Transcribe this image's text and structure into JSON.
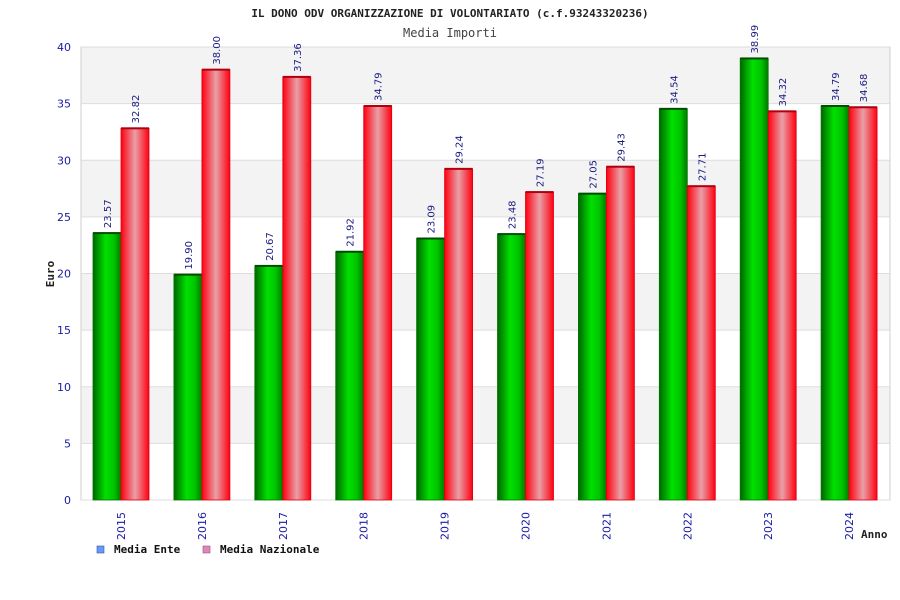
{
  "chart_data": {
    "type": "bar",
    "title": "IL DONO ODV ORGANIZZAZIONE DI VOLONTARIATO (c.f.93243320236)",
    "subtitle": "Media Importi",
    "xlabel": "Anno",
    "ylabel": "Euro",
    "ylim": [
      0,
      40
    ],
    "yticks": [
      "0",
      "5",
      "10",
      "15",
      "20",
      "25",
      "30",
      "35",
      "40"
    ],
    "categories": [
      "2015",
      "2016",
      "2017",
      "2018",
      "2019",
      "2020",
      "2021",
      "2022",
      "2023",
      "2024"
    ],
    "series": [
      {
        "name": "Media Ente",
        "values": [
          23.57,
          19.9,
          20.67,
          21.92,
          23.09,
          23.48,
          27.05,
          34.54,
          38.99,
          34.79
        ],
        "labels": [
          "23.57",
          "19.90",
          "20.67",
          "21.92",
          "23.09",
          "23.48",
          "27.05",
          "34.54",
          "38.99",
          "34.79"
        ]
      },
      {
        "name": "Media Nazionale",
        "values": [
          32.82,
          38.0,
          37.36,
          34.79,
          29.24,
          27.19,
          29.43,
          27.71,
          34.32,
          34.68
        ],
        "labels": [
          "32.82",
          "38.00",
          "37.36",
          "34.79",
          "29.24",
          "27.19",
          "29.43",
          "27.71",
          "34.32",
          "34.68"
        ]
      }
    ],
    "legend_position": "bottom-left",
    "grid": true,
    "colors": {
      "ente": "#00c000",
      "nazionale": "#ff2030",
      "legend_ente": "#6699ff",
      "legend_nazionale": "#dd88bb"
    }
  }
}
